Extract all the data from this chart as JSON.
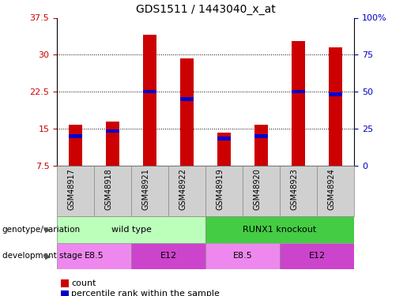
{
  "title": "GDS1511 / 1443040_x_at",
  "samples": [
    "GSM48917",
    "GSM48918",
    "GSM48921",
    "GSM48922",
    "GSM48919",
    "GSM48920",
    "GSM48923",
    "GSM48924"
  ],
  "count_values": [
    15.8,
    16.5,
    34.0,
    29.3,
    14.3,
    15.8,
    32.8,
    31.5
  ],
  "percentile_values": [
    13.5,
    14.5,
    22.5,
    21.0,
    13.0,
    13.5,
    22.5,
    22.0
  ],
  "ylim_left": [
    7.5,
    37.5
  ],
  "yticks_left": [
    7.5,
    15.0,
    22.5,
    30.0,
    37.5
  ],
  "yticklabels_left": [
    "7.5",
    "15",
    "22.5",
    "30",
    "37.5"
  ],
  "ylim_right": [
    0,
    100
  ],
  "yticks_right": [
    0,
    25,
    50,
    75,
    100
  ],
  "yticklabels_right": [
    "0",
    "25",
    "50",
    "75",
    "100%"
  ],
  "bar_color": "#cc0000",
  "percentile_color": "#0000cc",
  "genotype_groups": [
    {
      "label": "wild type",
      "start": 0,
      "end": 4,
      "color": "#bbffbb"
    },
    {
      "label": "RUNX1 knockout",
      "start": 4,
      "end": 8,
      "color": "#44cc44"
    }
  ],
  "dev_stage_groups": [
    {
      "label": "E8.5",
      "start": 0,
      "end": 2,
      "color": "#ee88ee"
    },
    {
      "label": "E12",
      "start": 2,
      "end": 4,
      "color": "#cc44cc"
    },
    {
      "label": "E8.5",
      "start": 4,
      "end": 6,
      "color": "#ee88ee"
    },
    {
      "label": "E12",
      "start": 6,
      "end": 8,
      "color": "#cc44cc"
    }
  ],
  "left_tick_color": "#cc0000",
  "right_tick_color": "#0000cc",
  "bar_width": 0.35,
  "percentile_bar_width": 0.35,
  "percentile_bar_height": 0.7,
  "annotation_row1_label": "genotype/variation",
  "annotation_row2_label": "development stage",
  "legend_count_label": "count",
  "legend_pct_label": "percentile rank within the sample",
  "grid_yticks": [
    15.0,
    22.5,
    30.0
  ]
}
